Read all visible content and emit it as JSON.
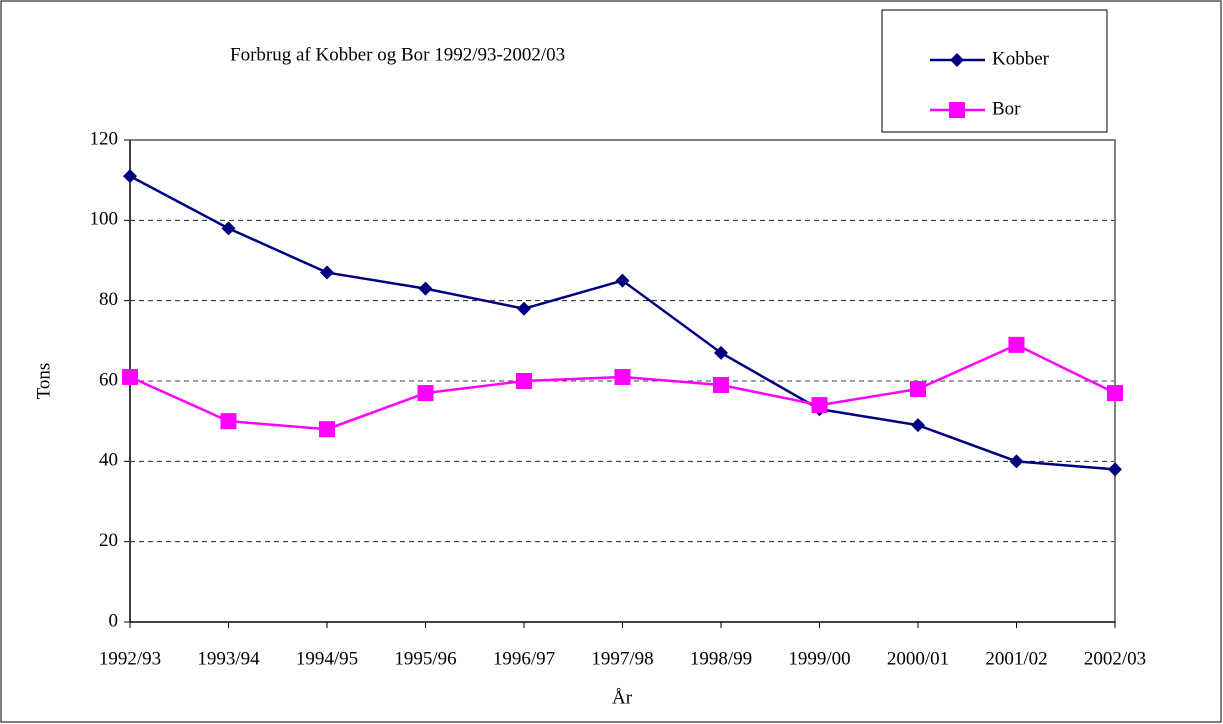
{
  "chart_data": {
    "type": "line",
    "title": "Forbrug af Kobber og Bor 1992/93-2002/03",
    "x_label": "År",
    "y_label": "Tons",
    "categories": [
      "1992/93",
      "1993/94",
      "1994/95",
      "1995/96",
      "1996/97",
      "1997/98",
      "1998/99",
      "1999/00",
      "2000/01",
      "2001/02",
      "2002/03"
    ],
    "series": [
      {
        "name": "Kobber",
        "color": "#000080",
        "marker": "diamond",
        "values": [
          111,
          98,
          87,
          83,
          78,
          85,
          67,
          53,
          49,
          40,
          38
        ]
      },
      {
        "name": "Bor",
        "color": "#ff00ff",
        "marker": "square",
        "values": [
          61,
          50,
          48,
          57,
          60,
          61,
          59,
          54,
          58,
          69,
          57
        ]
      }
    ],
    "ylim": [
      0,
      120
    ],
    "yticks": [
      0,
      20,
      40,
      60,
      80,
      100,
      120
    ],
    "grid": true,
    "legend": "top-right"
  }
}
